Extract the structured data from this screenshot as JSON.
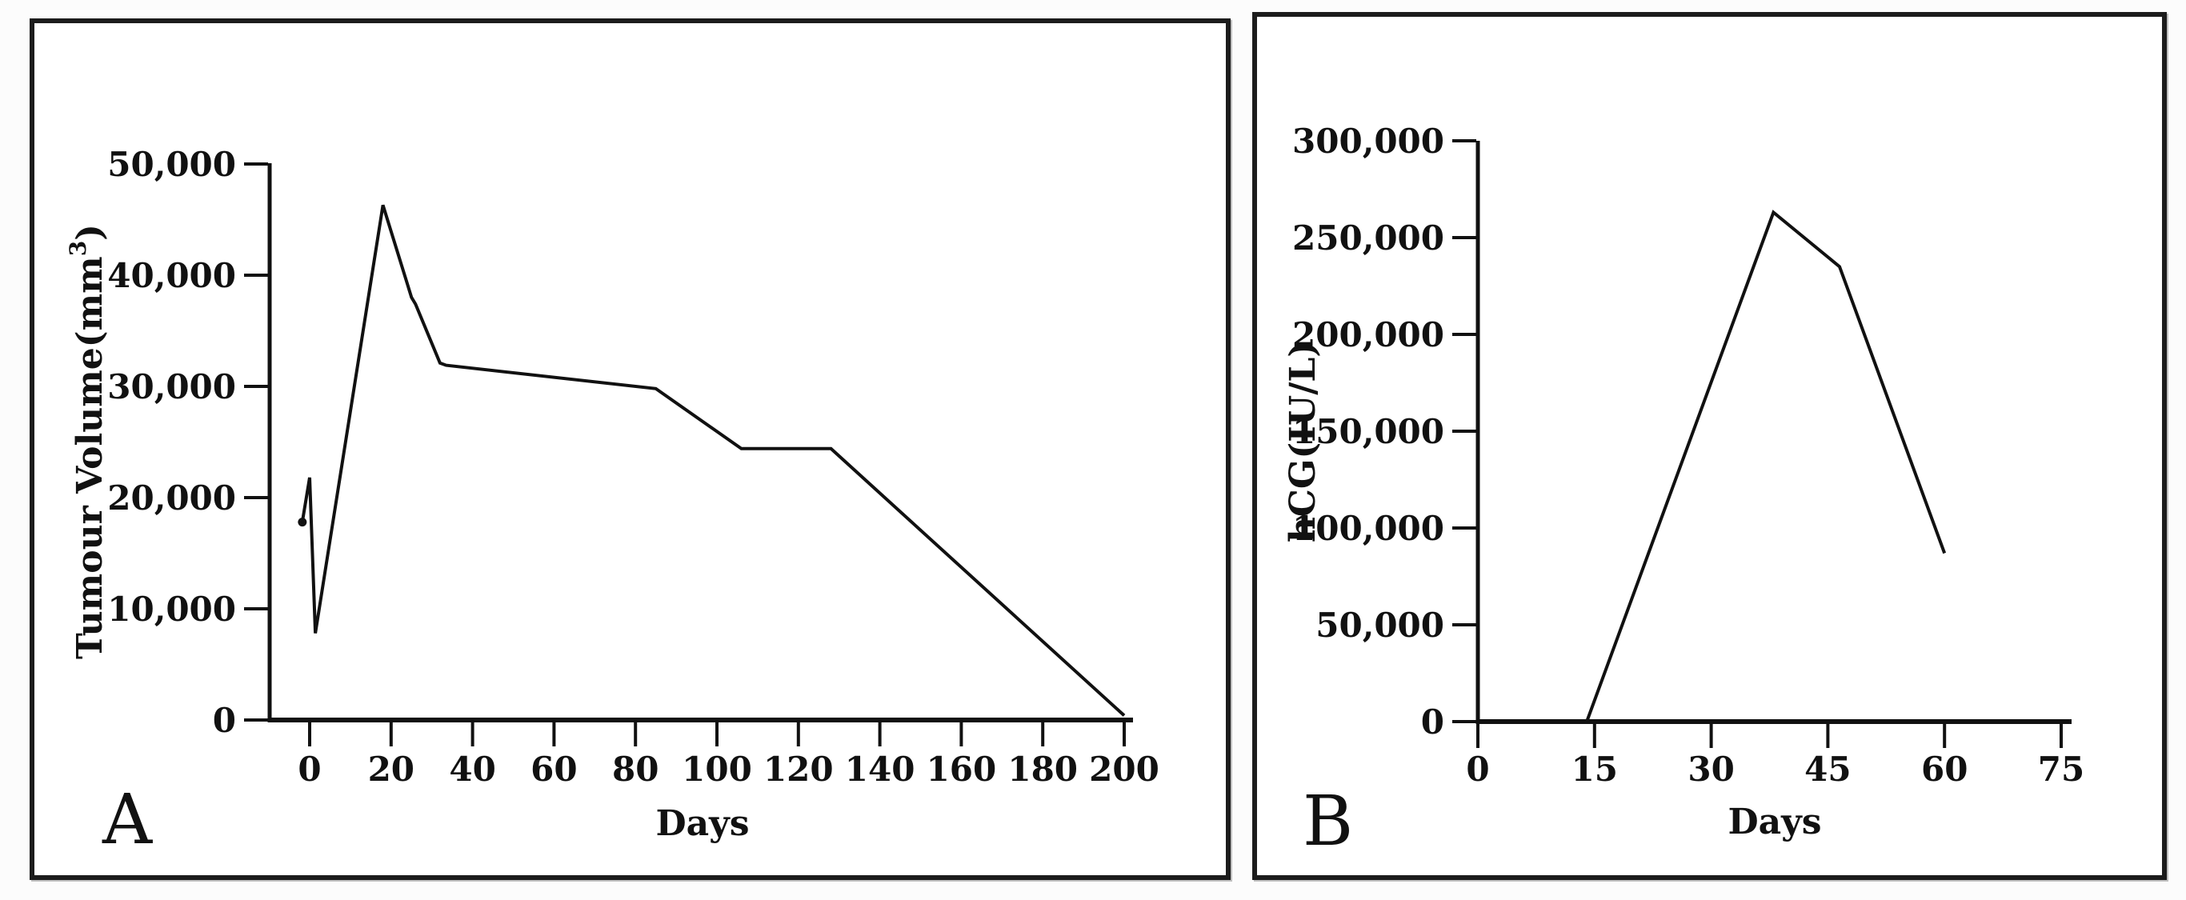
{
  "figure": {
    "background": "#fcfcfc",
    "panels": [
      {
        "id": "A",
        "letter": "A"
      },
      {
        "id": "B",
        "letter": "B"
      }
    ]
  },
  "chart_data": [
    {
      "type": "line",
      "panel": "A",
      "title": "",
      "xlabel": "Days",
      "ylabel": "Tumour Volume(mm³)",
      "ylabel_parts": [
        {
          "text": "Tumour Volume(mm"
        },
        {
          "text": "3",
          "superscript": true
        },
        {
          "text": ")"
        }
      ],
      "xlim": [
        -10,
        201
      ],
      "ylim": [
        0,
        50000
      ],
      "x_ticks": {
        "values": [
          0,
          20,
          40,
          60,
          80,
          100,
          120,
          140,
          160,
          180,
          200
        ],
        "labels": [
          "0",
          "20",
          "40",
          "60",
          "80",
          "100",
          "120",
          "140",
          "160",
          "180",
          "200"
        ]
      },
      "y_ticks": {
        "values": [
          0,
          10000,
          20000,
          30000,
          40000,
          50000
        ],
        "labels": [
          "0",
          "10,000",
          "20,000",
          "30,000",
          "40,000",
          "50,000"
        ]
      },
      "grid": false,
      "legend": null,
      "line_color": "#111111",
      "first_point_marker": true,
      "series": [
        {
          "name": "Tumour volume",
          "points": [
            [
              -1.8,
              17800
            ],
            [
              0,
              21800
            ],
            [
              1.4,
              7800
            ],
            [
              18,
              46300
            ],
            [
              25,
              38000
            ],
            [
              26,
              37400
            ],
            [
              32,
              32100
            ],
            [
              33.5,
              31900
            ],
            [
              85,
              29800
            ],
            [
              106,
              24400
            ],
            [
              128,
              24400
            ],
            [
              200,
              400
            ]
          ]
        }
      ]
    },
    {
      "type": "line",
      "panel": "B",
      "title": "",
      "xlabel": "Days",
      "ylabel": "hCG(IU/L)",
      "ylabel_parts": [
        {
          "text": "hCG(IU/L)"
        }
      ],
      "xlim": [
        0,
        76
      ],
      "ylim": [
        0,
        300000
      ],
      "x_ticks": {
        "values": [
          0,
          15,
          30,
          45,
          60,
          75
        ],
        "labels": [
          "0",
          "15",
          "30",
          "45",
          "60",
          "75"
        ]
      },
      "y_ticks": {
        "values": [
          0,
          50000,
          100000,
          150000,
          200000,
          250000,
          300000
        ],
        "labels": [
          "0",
          "50,000",
          "100,000",
          "150,000",
          "200,000",
          "250,000",
          "300,000"
        ]
      },
      "grid": false,
      "legend": null,
      "line_color": "#111111",
      "first_point_marker": false,
      "series": [
        {
          "name": "hCG",
          "points": [
            [
              14,
              0
            ],
            [
              38,
              263000
            ],
            [
              46.5,
              235000
            ],
            [
              60,
              87000
            ]
          ]
        }
      ]
    }
  ]
}
